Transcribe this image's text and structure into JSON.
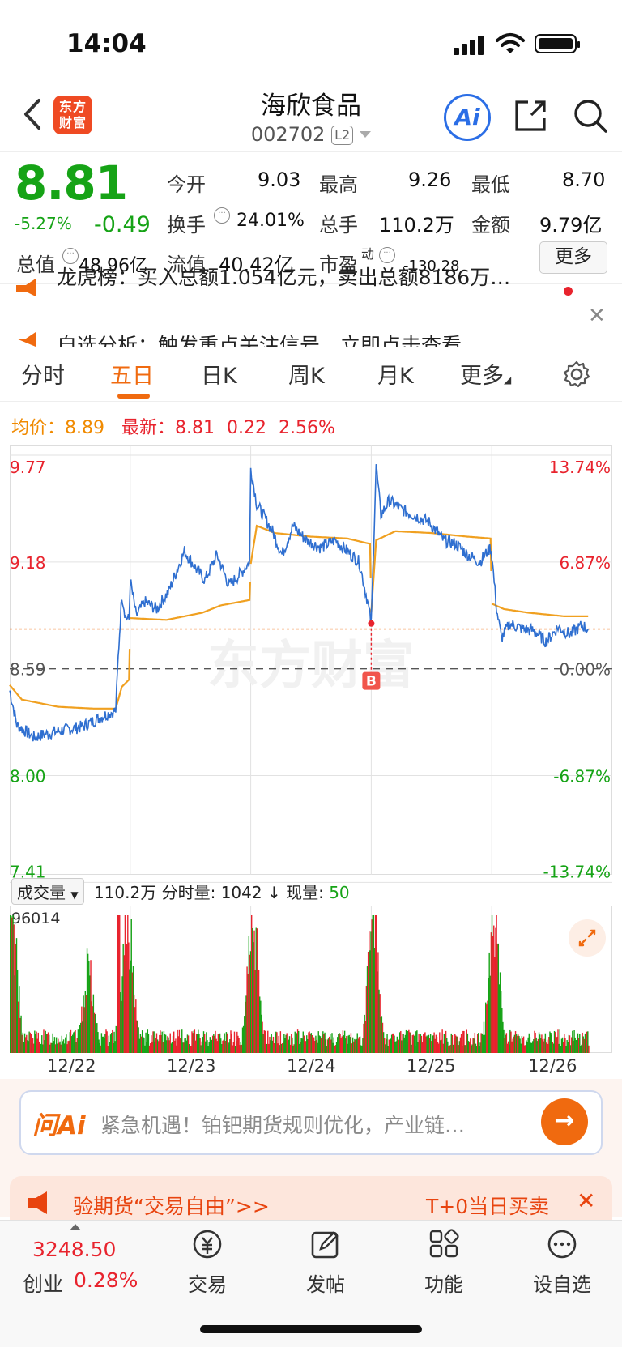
{
  "status": {
    "time": "14:04"
  },
  "header": {
    "logo": [
      "东方",
      "财富"
    ],
    "title": "海欣食品",
    "code": "002702",
    "level": "L2",
    "ai": "Ai"
  },
  "quote": {
    "price": "8.81",
    "pct": "-5.27%",
    "change": "-0.49",
    "open_label": "今开",
    "open": "9.03",
    "high_label": "最高",
    "high": "9.26",
    "low_label": "最低",
    "low": "8.70",
    "turnover_label": "换手",
    "turnover": "24.01%",
    "vol_label": "总手",
    "vol": "110.2万",
    "amount_label": "金额",
    "amount": "9.79亿",
    "mcap_label": "总值",
    "mcap": "48.96亿",
    "float_label": "流值",
    "float": "40.42亿",
    "pe_label": "市盈",
    "pe_sup": "动",
    "pe": "-130.28",
    "more": "更多"
  },
  "news": [
    "龙虎榜：买入总额1.054亿元，卖出总额8186万…",
    "自选分析：触发重点关注信号，立即点击查看"
  ],
  "tabs": [
    "分时",
    "五日",
    "日K",
    "周K",
    "月K",
    "更多"
  ],
  "active_tab": 1,
  "chart_info": {
    "avg_label": "均价：",
    "avg": "8.89",
    "last_label": "最新：",
    "last": "8.81",
    "diff": "0.22",
    "diff_pct": "2.56%"
  },
  "colors": {
    "price_line": "#2f6fd0",
    "avg_line": "#f0a020",
    "up": "#e8232d",
    "down": "#16a316",
    "accent": "#f06a0f"
  },
  "chart_data": {
    "type": "line",
    "y_left_ticks": [
      "9.77",
      "9.18",
      "8.59",
      "8.00",
      "7.41"
    ],
    "y_right_ticks": [
      "13.74%",
      "6.87%",
      "0.00%",
      "-6.87%",
      "-13.74%"
    ],
    "ylim": [
      7.41,
      9.77
    ],
    "prev_close": 8.59,
    "current_price_line": 8.81,
    "days": [
      "12/22",
      "12/23",
      "12/24",
      "12/25",
      "12/26"
    ],
    "watermark": "东方财富",
    "marker": "B",
    "price_anchors": [
      [
        0,
        8.47
      ],
      [
        0.06,
        8.28
      ],
      [
        0.14,
        8.24
      ],
      [
        0.2,
        8.21
      ],
      [
        0.3,
        8.23
      ],
      [
        0.44,
        8.25
      ],
      [
        0.6,
        8.27
      ],
      [
        0.78,
        8.33
      ],
      [
        0.88,
        8.36
      ],
      [
        0.9,
        8.65
      ],
      [
        0.93,
        9.0
      ],
      [
        0.96,
        8.88
      ],
      [
        0.99,
        8.86
      ],
      [
        1.0,
        9.08
      ],
      [
        1.05,
        8.88
      ],
      [
        1.12,
        8.96
      ],
      [
        1.22,
        8.92
      ],
      [
        1.32,
        9.02
      ],
      [
        1.45,
        9.24
      ],
      [
        1.55,
        9.14
      ],
      [
        1.62,
        9.08
      ],
      [
        1.72,
        9.22
      ],
      [
        1.82,
        9.05
      ],
      [
        1.92,
        9.12
      ],
      [
        1.99,
        9.18
      ],
      [
        2.0,
        9.7
      ],
      [
        2.05,
        9.5
      ],
      [
        2.12,
        9.42
      ],
      [
        2.18,
        9.35
      ],
      [
        2.26,
        9.22
      ],
      [
        2.35,
        9.38
      ],
      [
        2.46,
        9.3
      ],
      [
        2.58,
        9.26
      ],
      [
        2.7,
        9.3
      ],
      [
        2.8,
        9.24
      ],
      [
        2.9,
        9.18
      ],
      [
        2.97,
        8.96
      ],
      [
        3.0,
        8.84
      ],
      [
        3.04,
        9.72
      ],
      [
        3.08,
        9.44
      ],
      [
        3.15,
        9.52
      ],
      [
        3.25,
        9.47
      ],
      [
        3.35,
        9.44
      ],
      [
        3.48,
        9.4
      ],
      [
        3.6,
        9.3
      ],
      [
        3.7,
        9.28
      ],
      [
        3.8,
        9.22
      ],
      [
        3.9,
        9.18
      ],
      [
        3.99,
        9.26
      ],
      [
        4.0,
        9.22
      ],
      [
        4.04,
        8.92
      ],
      [
        4.08,
        8.76
      ],
      [
        4.15,
        8.84
      ],
      [
        4.25,
        8.81
      ],
      [
        4.35,
        8.8
      ],
      [
        4.45,
        8.74
      ],
      [
        4.55,
        8.82
      ],
      [
        4.65,
        8.78
      ],
      [
        4.75,
        8.83
      ],
      [
        4.8,
        8.81
      ]
    ],
    "avg_anchors": [
      [
        0,
        8.5
      ],
      [
        0.1,
        8.42
      ],
      [
        0.4,
        8.38
      ],
      [
        0.7,
        8.37
      ],
      [
        0.88,
        8.37
      ],
      [
        0.93,
        8.49
      ],
      [
        0.99,
        8.53
      ],
      [
        1.0,
        8.87
      ],
      [
        1.3,
        8.86
      ],
      [
        1.6,
        8.9
      ],
      [
        1.75,
        8.94
      ],
      [
        1.99,
        8.97
      ],
      [
        2.0,
        9.17
      ],
      [
        2.05,
        9.38
      ],
      [
        2.2,
        9.34
      ],
      [
        2.5,
        9.32
      ],
      [
        2.8,
        9.31
      ],
      [
        2.99,
        9.28
      ],
      [
        3.0,
        8.9
      ],
      [
        3.04,
        9.3
      ],
      [
        3.2,
        9.35
      ],
      [
        3.5,
        9.34
      ],
      [
        3.8,
        9.32
      ],
      [
        3.99,
        9.31
      ],
      [
        4.0,
        8.95
      ],
      [
        4.1,
        8.92
      ],
      [
        4.3,
        8.9
      ],
      [
        4.6,
        8.88
      ],
      [
        4.8,
        8.88
      ]
    ]
  },
  "volume": {
    "dropdown": "成交量",
    "total": "110.2万",
    "seg_label": "分时量:",
    "seg": "1042",
    "now_label": "现量:",
    "now": "50",
    "max_label": "96014",
    "max": 96014,
    "peaks": [
      0.0,
      0.03,
      0.65,
      0.95,
      1.0,
      2.0,
      2.03,
      3.0,
      3.03,
      4.0,
      4.03
    ]
  },
  "ai_bar": {
    "brand": "问Ai",
    "text": "紧急机遇！铂钯期货规则优化，产业链…"
  },
  "promo": {
    "left": "验期货“交易自由”>>",
    "right": "T+0当日买卖"
  },
  "bottom_nav": {
    "index_value": "3248.50",
    "index_name": "创业",
    "index_pct": "0.28%",
    "items": [
      "交易",
      "发帖",
      "功能",
      "设自选"
    ]
  }
}
